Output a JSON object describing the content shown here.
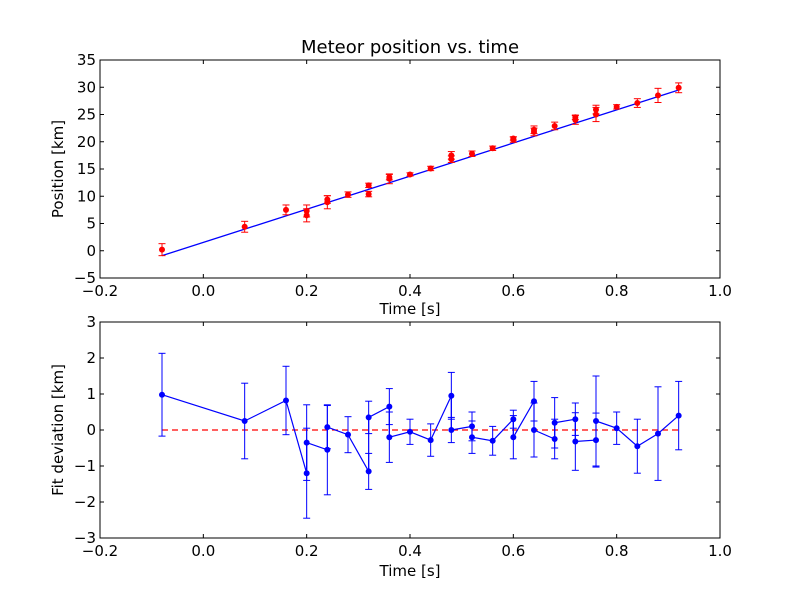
{
  "chart_data": [
    {
      "type": "scatter",
      "title": "Meteor position vs. time",
      "xlabel": "Time [s]",
      "ylabel": "Position [km]",
      "xlim": [
        -0.2,
        1.0
      ],
      "ylim": [
        -5,
        35
      ],
      "xticks": [
        "−0.2",
        "0.0",
        "0.2",
        "0.4",
        "0.6",
        "0.8",
        "1.0"
      ],
      "yticks": [
        "−5",
        "0",
        "5",
        "10",
        "15",
        "20",
        "25",
        "30",
        "35"
      ],
      "grid": false,
      "series": [
        {
          "kind": "errorbar-points",
          "color": "#ff0000",
          "x": [
            -0.08,
            0.08,
            0.16,
            0.2,
            0.2,
            0.24,
            0.24,
            0.28,
            0.32,
            0.32,
            0.36,
            0.36,
            0.4,
            0.44,
            0.48,
            0.48,
            0.52,
            0.56,
            0.6,
            0.6,
            0.64,
            0.64,
            0.68,
            0.72,
            0.72,
            0.76,
            0.76,
            0.8,
            0.84,
            0.88,
            0.92
          ],
          "y": [
            0.2,
            4.4,
            7.5,
            7.3,
            6.5,
            8.9,
            9.4,
            10.3,
            10.4,
            12.0,
            13.2,
            13.5,
            14.0,
            15.1,
            16.8,
            17.5,
            17.8,
            18.8,
            20.4,
            20.6,
            21.8,
            22.2,
            22.9,
            24.0,
            24.5,
            25.0,
            25.9,
            26.4,
            27.1,
            28.5,
            29.9
          ],
          "yerr": [
            1.1,
            1.0,
            0.9,
            1.1,
            1.2,
            1.2,
            0.7,
            0.5,
            0.5,
            0.4,
            0.9,
            0.5,
            0.3,
            0.4,
            0.6,
            0.7,
            0.5,
            0.4,
            0.5,
            0.3,
            0.7,
            0.7,
            0.7,
            0.8,
            0.4,
            1.3,
            0.8,
            0.4,
            0.8,
            1.3,
            0.9
          ]
        },
        {
          "kind": "fit-line",
          "color": "#0000ff",
          "x": [
            -0.08,
            0.92
          ],
          "y": [
            -0.9,
            29.5
          ]
        }
      ]
    },
    {
      "type": "line",
      "title": "",
      "xlabel": "Time [s]",
      "ylabel": "Fit deviation [km]",
      "xlim": [
        -0.2,
        1.0
      ],
      "ylim": [
        -3,
        3
      ],
      "xticks": [
        "−0.2",
        "0.0",
        "0.2",
        "0.4",
        "0.6",
        "0.8",
        "1.0"
      ],
      "yticks": [
        "−3",
        "−2",
        "−1",
        "0",
        "1",
        "2",
        "3"
      ],
      "grid": false,
      "series": [
        {
          "kind": "errorbar-line",
          "color": "#0000ff",
          "x": [
            -0.08,
            0.08,
            0.16,
            0.2,
            0.2,
            0.24,
            0.24,
            0.28,
            0.32,
            0.32,
            0.36,
            0.36,
            0.4,
            0.44,
            0.48,
            0.48,
            0.52,
            0.52,
            0.56,
            0.6,
            0.6,
            0.64,
            0.64,
            0.68,
            0.68,
            0.72,
            0.72,
            0.76,
            0.76,
            0.8,
            0.84,
            0.88,
            0.92
          ],
          "y": [
            0.98,
            0.25,
            0.82,
            -1.2,
            -0.35,
            -0.55,
            0.08,
            -0.13,
            -1.15,
            0.35,
            0.65,
            -0.2,
            -0.05,
            -0.28,
            0.95,
            0.0,
            0.1,
            -0.2,
            -0.3,
            0.3,
            -0.2,
            0.8,
            0.0,
            -0.25,
            0.2,
            0.3,
            -0.32,
            -0.28,
            0.25,
            0.05,
            -0.45,
            -0.1,
            0.4
          ],
          "yerr": [
            1.15,
            1.05,
            0.95,
            1.25,
            1.05,
            1.25,
            0.6,
            0.5,
            0.5,
            0.45,
            0.5,
            0.7,
            0.35,
            0.45,
            0.65,
            0.35,
            0.4,
            0.45,
            0.4,
            0.25,
            0.6,
            0.55,
            0.75,
            0.55,
            0.7,
            0.45,
            0.8,
            0.75,
            1.25,
            0.45,
            0.75,
            1.3,
            0.95
          ]
        },
        {
          "kind": "zero-line",
          "color": "#ff0000",
          "style": "dashed",
          "x": [
            -0.08,
            0.92
          ],
          "y": [
            0,
            0
          ]
        }
      ]
    }
  ]
}
